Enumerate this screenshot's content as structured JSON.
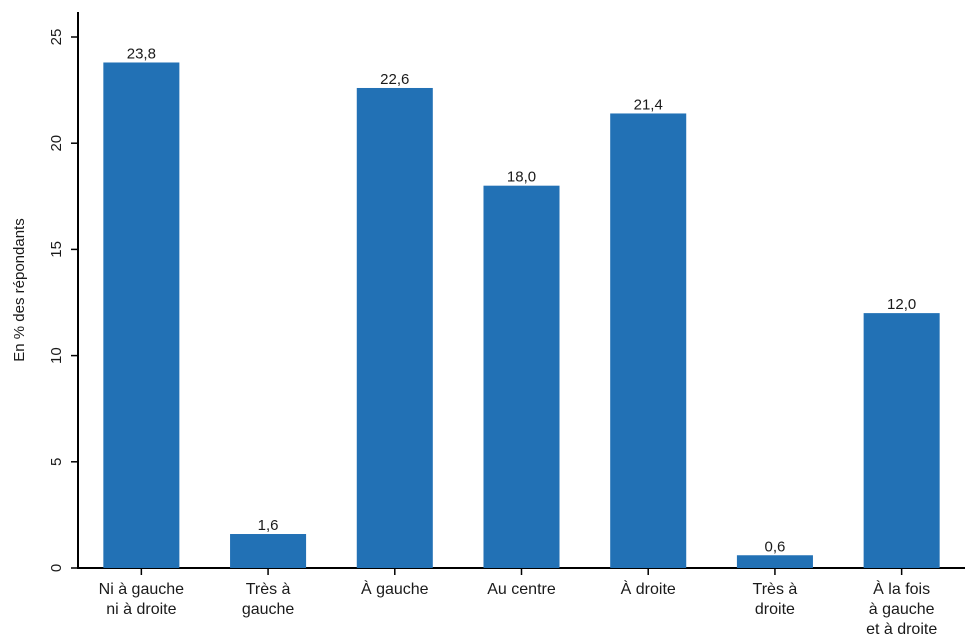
{
  "chart_data": {
    "type": "bar",
    "categories": [
      [
        "Ni à gauche",
        "ni à droite"
      ],
      [
        "Très à",
        "gauche"
      ],
      [
        "À gauche"
      ],
      [
        "Au centre"
      ],
      [
        "À droite"
      ],
      [
        "Très à",
        "droite"
      ],
      [
        "À la fois",
        "à gauche",
        "et à droite"
      ]
    ],
    "values": [
      23.8,
      1.6,
      22.6,
      18.0,
      21.4,
      0.6,
      12.0
    ],
    "value_labels": [
      "23,8",
      "1,6",
      "22,6",
      "18,0",
      "21,4",
      "0,6",
      "12,0"
    ],
    "title": "",
    "xlabel": "",
    "ylabel": "En % des répondants",
    "ylim": [
      0,
      25
    ],
    "yticks": [
      0,
      5,
      10,
      15,
      20,
      25
    ],
    "grid": false,
    "bar_color": "#2271b5"
  }
}
